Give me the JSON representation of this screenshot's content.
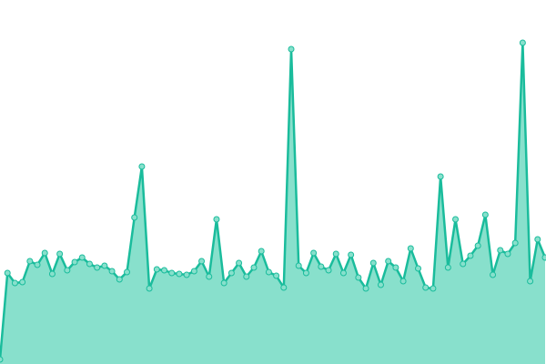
{
  "chart_data": {
    "type": "area",
    "color": "#1abc9c",
    "fill": "#88e0cc",
    "ylim": [
      0,
      400
    ],
    "values": [
      5,
      100,
      89,
      90,
      113,
      109,
      122,
      99,
      121,
      103,
      112,
      117,
      110,
      106,
      108,
      102,
      93,
      101,
      161,
      217,
      83,
      104,
      103,
      100,
      99,
      98,
      102,
      113,
      96,
      159,
      89,
      100,
      111,
      96,
      106,
      124,
      101,
      97,
      84,
      346,
      108,
      100,
      122,
      107,
      103,
      121,
      100,
      120,
      95,
      83,
      111,
      87,
      113,
      106,
      91,
      127,
      105,
      84,
      83,
      206,
      106,
      159,
      110,
      119,
      130,
      164,
      98,
      125,
      121,
      133,
      353,
      91,
      137,
      117
    ]
  }
}
